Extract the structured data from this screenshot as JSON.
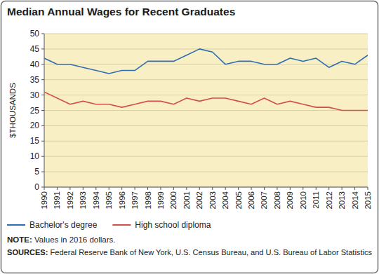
{
  "chart_data": {
    "type": "line",
    "title": "Median Annual Wages for Recent Graduates",
    "ylabel": "$THOUSANDS",
    "note": "NOTE: Values in 2016 dollars.",
    "sources": "SOURCES: Federal Reserve Bank of New York, U.S. Census Bureau, and U.S. Bureau of Labor Statistics",
    "x": [
      1990,
      1991,
      1992,
      1993,
      1994,
      1995,
      1996,
      1997,
      1998,
      1999,
      2000,
      2001,
      2002,
      2003,
      2004,
      2005,
      2006,
      2007,
      2008,
      2009,
      2010,
      2011,
      2012,
      2013,
      2014,
      2015
    ],
    "xlim": [
      1990,
      2015
    ],
    "xticks": [
      1990,
      1991,
      1992,
      1993,
      1994,
      1995,
      1996,
      1997,
      1998,
      1999,
      2000,
      2001,
      2002,
      2003,
      2004,
      2005,
      2006,
      2007,
      2008,
      2009,
      2010,
      2011,
      2012,
      2013,
      2014,
      2015
    ],
    "ylim": [
      0,
      50
    ],
    "yticks": [
      0,
      5,
      10,
      15,
      20,
      25,
      30,
      35,
      40,
      45,
      50
    ],
    "grid": true,
    "legend": "bottom",
    "series": [
      {
        "name": "Bachelor's degree",
        "color": "#2f6db3",
        "values": [
          42,
          40,
          40,
          39,
          38,
          37,
          38,
          38,
          41,
          41,
          41,
          43,
          45,
          44,
          40,
          41,
          41,
          40,
          40,
          42,
          41,
          42,
          39,
          41,
          40,
          43
        ]
      },
      {
        "name": "High school diploma",
        "color": "#d0504a",
        "values": [
          31,
          29,
          27,
          28,
          27,
          27,
          26,
          27,
          28,
          28,
          27,
          29,
          28,
          29,
          29,
          28,
          27,
          29,
          27,
          28,
          27,
          26,
          26,
          25,
          25,
          25
        ]
      }
    ]
  }
}
